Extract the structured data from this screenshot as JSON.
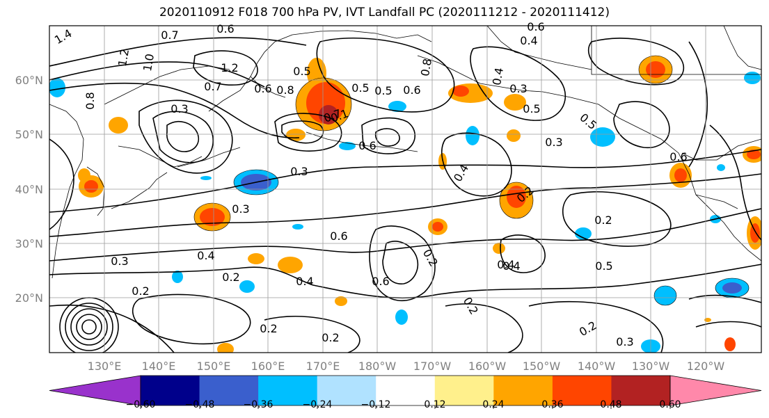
{
  "title": "2020110912 F018 700 hPa PV, IVT Landfall PC (2020111212 - 2020111412)",
  "latitude_labels": [
    "60°N",
    "50°N",
    "40°N",
    "30°N",
    "20°N"
  ],
  "longitude_labels": [
    "130°E",
    "140°E",
    "150°E",
    "160°E",
    "170°E",
    "180°W",
    "170°W",
    "160°W",
    "150°W",
    "140°W",
    "130°W",
    "120°W"
  ],
  "colorbar": {
    "ticks": [
      "−0.60",
      "−0.48",
      "−0.36",
      "−0.24",
      "−0.12",
      "0.12",
      "0.24",
      "0.36",
      "0.48",
      "0.60"
    ],
    "colors": [
      "#9932cc",
      "#00008b",
      "#3a5fcd",
      "#00bfff",
      "#b0e2ff",
      "#ffffff",
      "#fff08c",
      "#ffa500",
      "#ff4500",
      "#b22222",
      "#ff88aa"
    ]
  },
  "contour_labels": [
    "0.7",
    "0.6",
    "1.4",
    "1.2",
    "1.0",
    "0.8",
    "1.2",
    "0.5",
    "0.7",
    "0.6",
    "0.8",
    "0.5",
    "0.6",
    "0.3",
    "0.7",
    "0.6",
    "0.5",
    "0.6",
    "0.4",
    "0.4",
    "0.3",
    "0.3",
    "0.4",
    "0.3",
    "0.3",
    "0.2",
    "0.2",
    "0.5",
    "0.6",
    "0.4",
    "0.2",
    "0.4",
    "0.3",
    "0.2",
    "0.2",
    "0.2",
    "0.2",
    "0.4",
    "0.2",
    "0.2",
    "0.3",
    "0.5",
    "0.4",
    "0.5",
    "0.6",
    "0.8",
    "0.6",
    "0.1"
  ]
}
